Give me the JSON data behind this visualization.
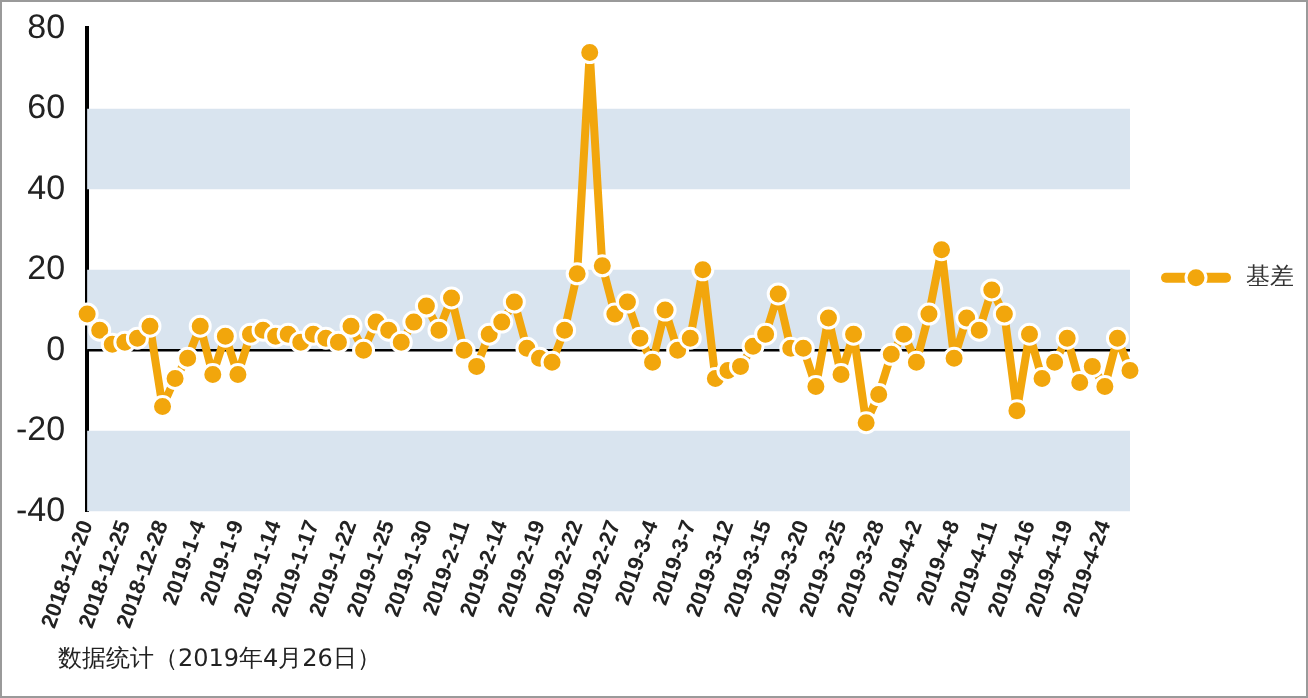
{
  "chart_data": {
    "type": "line",
    "categories": [
      "2018-12-20",
      null,
      null,
      "2018-12-25",
      null,
      null,
      "2018-12-28",
      null,
      null,
      "2019-1-4",
      null,
      null,
      "2019-1-9",
      null,
      null,
      "2019-1-14",
      null,
      null,
      "2019-1-17",
      null,
      null,
      "2019-1-22",
      null,
      null,
      "2019-1-25",
      null,
      null,
      "2019-1-30",
      null,
      null,
      "2019-2-11",
      null,
      null,
      "2019-2-14",
      null,
      null,
      "2019-2-19",
      null,
      null,
      "2019-2-22",
      null,
      null,
      "2019-2-27",
      null,
      null,
      "2019-3-4",
      null,
      null,
      "2019-3-7",
      null,
      null,
      "2019-3-12",
      null,
      null,
      "2019-3-15",
      null,
      null,
      "2019-3-20",
      null,
      null,
      "2019-3-25",
      null,
      null,
      "2019-3-28",
      null,
      null,
      "2019-4-2",
      null,
      null,
      "2019-4-8",
      null,
      null,
      "2019-4-11",
      null,
      null,
      "2019-4-16",
      null,
      null,
      "2019-4-19",
      null,
      null,
      "2019-4-24",
      null,
      null
    ],
    "series": [
      {
        "name": "基差",
        "color": "#f2a60c",
        "values": [
          9,
          5,
          1.5,
          2,
          3,
          6,
          -14,
          -7,
          -2,
          6,
          -6,
          3.5,
          -6,
          4,
          5,
          3.5,
          4,
          2,
          4,
          3,
          2,
          6,
          0,
          7,
          5,
          2,
          7,
          11,
          5,
          13,
          0,
          -4,
          4,
          7,
          12,
          0.5,
          -2,
          -3,
          5,
          19,
          74,
          21,
          9,
          12,
          3,
          -3,
          10,
          0,
          3,
          20,
          -7,
          -5,
          -4,
          1,
          4,
          14,
          0.5,
          0.5,
          -9,
          8,
          -6,
          4,
          -18,
          -11,
          -1,
          4,
          -3,
          9,
          25,
          -2,
          8,
          5,
          15,
          9,
          -15,
          4,
          -7,
          -3,
          3,
          -8,
          -4,
          -9,
          3,
          -5
        ]
      }
    ],
    "ylim": [
      -40,
      80
    ],
    "yticks": [
      -40,
      -20,
      0,
      20,
      40,
      60,
      80
    ],
    "bands": [
      {
        "axis": "y",
        "from": 40,
        "to": 60,
        "color": "#d9e4ef"
      },
      {
        "axis": "y",
        "from": 0,
        "to": 20,
        "color": "#d9e4ef"
      },
      {
        "axis": "y",
        "from": -40,
        "to": -20,
        "color": "#d9e4ef"
      }
    ],
    "ref_lines": [
      {
        "axis": "y",
        "value": 0,
        "color": "#000000"
      }
    ],
    "grid": false,
    "legend": "right",
    "marker": "circle",
    "line_style": "solid",
    "annotations": [
      "数据统计（2019年4月26日）"
    ]
  }
}
